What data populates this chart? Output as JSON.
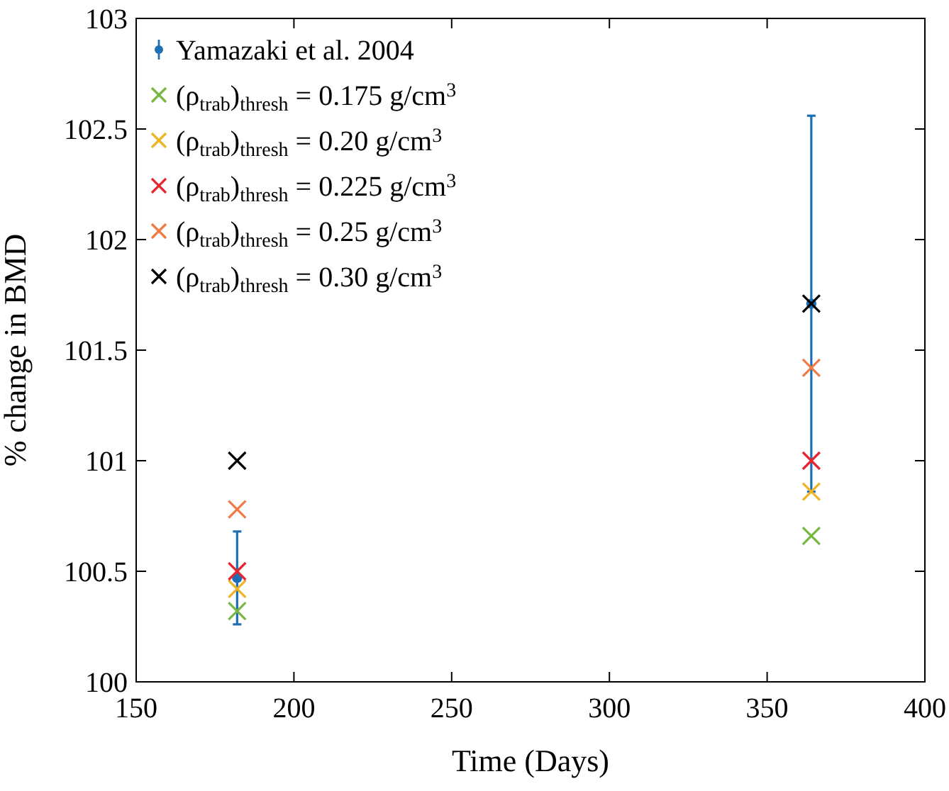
{
  "chart_data": {
    "type": "scatter",
    "xlabel": "Time (Days)",
    "ylabel": "% change in BMD",
    "xlim": [
      150,
      400
    ],
    "xticks": [
      150,
      200,
      250,
      300,
      350,
      400
    ],
    "ylim": [
      100,
      103
    ],
    "yticks": [
      100,
      100.5,
      101,
      101.5,
      102,
      102.5,
      103
    ],
    "legend": "top left",
    "grid": false,
    "x": [
      182,
      364
    ],
    "series": [
      {
        "name": "Yamazaki et al. 2004",
        "color": "#1f6fb4",
        "marker": "circle",
        "values": [
          100.47,
          101.71
        ],
        "errors": [
          0.21,
          0.85
        ]
      },
      {
        "name": "(ρ$_{trab}$)$_{thresh}$ = 0.175 g/cm$^{3}$",
        "color": "#77b843",
        "marker": "cross",
        "values": [
          100.32,
          100.66
        ]
      },
      {
        "name": "(ρ$_{trab}$)$_{thresh}$ = 0.20 g/cm$^{3}$",
        "color": "#f0b323",
        "marker": "cross",
        "values": [
          100.42,
          100.86
        ]
      },
      {
        "name": "(ρ$_{trab}$)$_{thresh}$ = 0.225 g/cm$^{3}$",
        "color": "#e8242f",
        "marker": "cross",
        "values": [
          100.5,
          101.0
        ]
      },
      {
        "name": "(ρ$_{trab}$)$_{thresh}$ = 0.25 g/cm$^{3}$",
        "color": "#f07a43",
        "marker": "cross",
        "values": [
          100.78,
          101.42
        ]
      },
      {
        "name": "(ρ$_{trab}$)$_{thresh}$ = 0.30 g/cm$^{3}$",
        "color": "#000000",
        "marker": "cross",
        "values": [
          101.0,
          101.71
        ]
      }
    ]
  }
}
